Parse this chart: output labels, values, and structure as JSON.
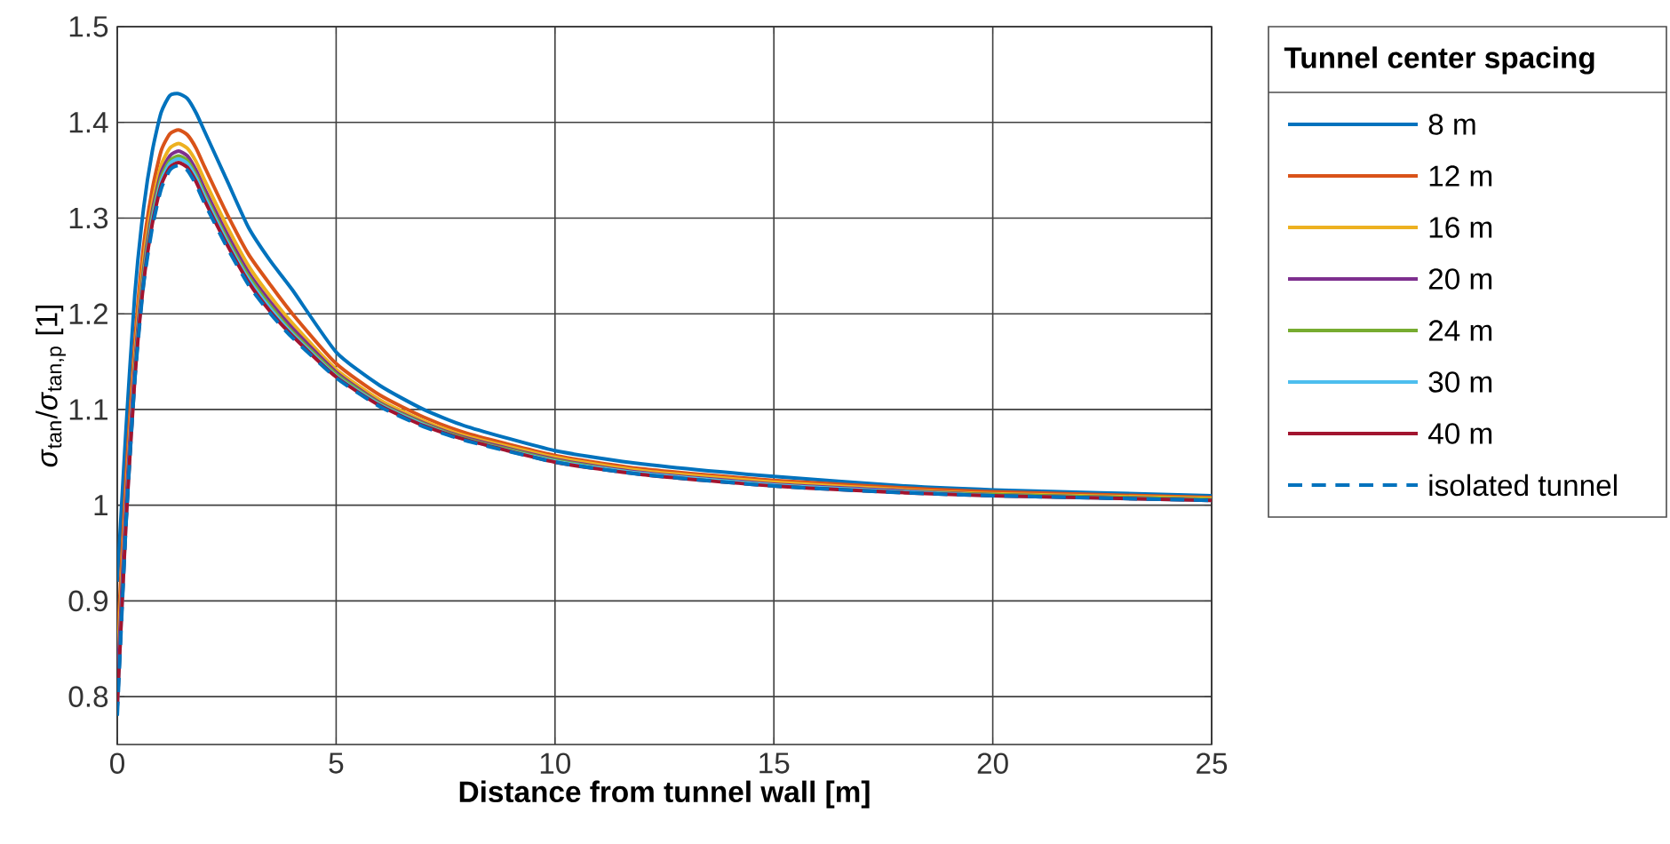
{
  "chart_data": {
    "type": "line",
    "xlabel": "Distance from tunnel wall [m]",
    "ylabel": "*σ*$_{tan}$/*σ*$_{tan,p}$ [1]",
    "legend_title": "Tunnel center spacing",
    "x": [
      0,
      0.2,
      0.4,
      0.6,
      0.8,
      1.0,
      1.2,
      1.4,
      1.6,
      1.8,
      2,
      2.5,
      3,
      3.5,
      4,
      5,
      6,
      7,
      8,
      10,
      12,
      15,
      18,
      20,
      25
    ],
    "series": [
      {
        "name": "8 m",
        "color": "#0072bd",
        "values": [
          0.92,
          1.08,
          1.22,
          1.31,
          1.37,
          1.41,
          1.428,
          1.43,
          1.425,
          1.41,
          1.39,
          1.34,
          1.29,
          1.255,
          1.225,
          1.16,
          1.125,
          1.1,
          1.082,
          1.057,
          1.043,
          1.03,
          1.02,
          1.016,
          1.01
        ]
      },
      {
        "name": "12 m",
        "color": "#d95319",
        "values": [
          0.85,
          1.03,
          1.17,
          1.27,
          1.33,
          1.37,
          1.388,
          1.392,
          1.387,
          1.373,
          1.353,
          1.305,
          1.262,
          1.23,
          1.2,
          1.148,
          1.115,
          1.092,
          1.075,
          1.052,
          1.038,
          1.026,
          1.018,
          1.014,
          1.008
        ]
      },
      {
        "name": "16 m",
        "color": "#edb120",
        "values": [
          0.83,
          1.01,
          1.155,
          1.255,
          1.315,
          1.355,
          1.373,
          1.378,
          1.373,
          1.359,
          1.339,
          1.292,
          1.25,
          1.218,
          1.19,
          1.142,
          1.11,
          1.088,
          1.072,
          1.05,
          1.036,
          1.024,
          1.016,
          1.012,
          1.007
        ]
      },
      {
        "name": "20 m",
        "color": "#7e2f8e",
        "values": [
          0.81,
          1.0,
          1.145,
          1.245,
          1.307,
          1.347,
          1.365,
          1.37,
          1.365,
          1.35,
          1.33,
          1.284,
          1.243,
          1.212,
          1.185,
          1.139,
          1.107,
          1.086,
          1.07,
          1.048,
          1.034,
          1.022,
          1.015,
          1.011,
          1.006
        ]
      },
      {
        "name": "24 m",
        "color": "#77ac30",
        "values": [
          null,
          null,
          1.14,
          1.24,
          1.302,
          1.342,
          1.36,
          1.365,
          1.36,
          1.345,
          1.325,
          1.279,
          1.239,
          1.208,
          1.181,
          1.137,
          1.106,
          1.085,
          1.069,
          1.047,
          1.033,
          1.021,
          1.014,
          1.011,
          1.006
        ]
      },
      {
        "name": "30 m",
        "color": "#4dbeee",
        "values": [
          0.79,
          0.985,
          1.135,
          1.235,
          1.298,
          1.338,
          1.357,
          1.362,
          1.357,
          1.342,
          1.322,
          1.276,
          1.236,
          1.205,
          1.179,
          1.135,
          1.105,
          1.084,
          1.068,
          1.046,
          1.033,
          1.021,
          1.014,
          1.01,
          1.005
        ]
      },
      {
        "name": "40 m",
        "color": "#a2142f",
        "values": [
          0.79,
          0.982,
          1.132,
          1.232,
          1.294,
          1.334,
          1.353,
          1.358,
          1.353,
          1.338,
          1.318,
          1.273,
          1.233,
          1.202,
          1.177,
          1.134,
          1.104,
          1.083,
          1.068,
          1.045,
          1.032,
          1.02,
          1.013,
          1.01,
          1.005
        ]
      },
      {
        "name": "isolated tunnel",
        "color": "#0072bd",
        "line_style": "dashed",
        "values": [
          0.78,
          0.98,
          1.13,
          1.23,
          1.29,
          1.33,
          1.35,
          1.355,
          1.35,
          1.335,
          1.315,
          1.27,
          1.23,
          1.2,
          1.175,
          1.133,
          1.103,
          1.082,
          1.067,
          1.045,
          1.032,
          1.02,
          1.013,
          1.01,
          1.005
        ]
      }
    ],
    "xlim": [
      0,
      25
    ],
    "ylim": [
      0.75,
      1.5
    ],
    "xticks": [
      0,
      5,
      10,
      15,
      20,
      25
    ],
    "yticks": [
      0.8,
      0.9,
      1,
      1.1,
      1.2,
      1.3,
      1.4,
      1.5
    ],
    "grid": true,
    "legend": "right"
  }
}
